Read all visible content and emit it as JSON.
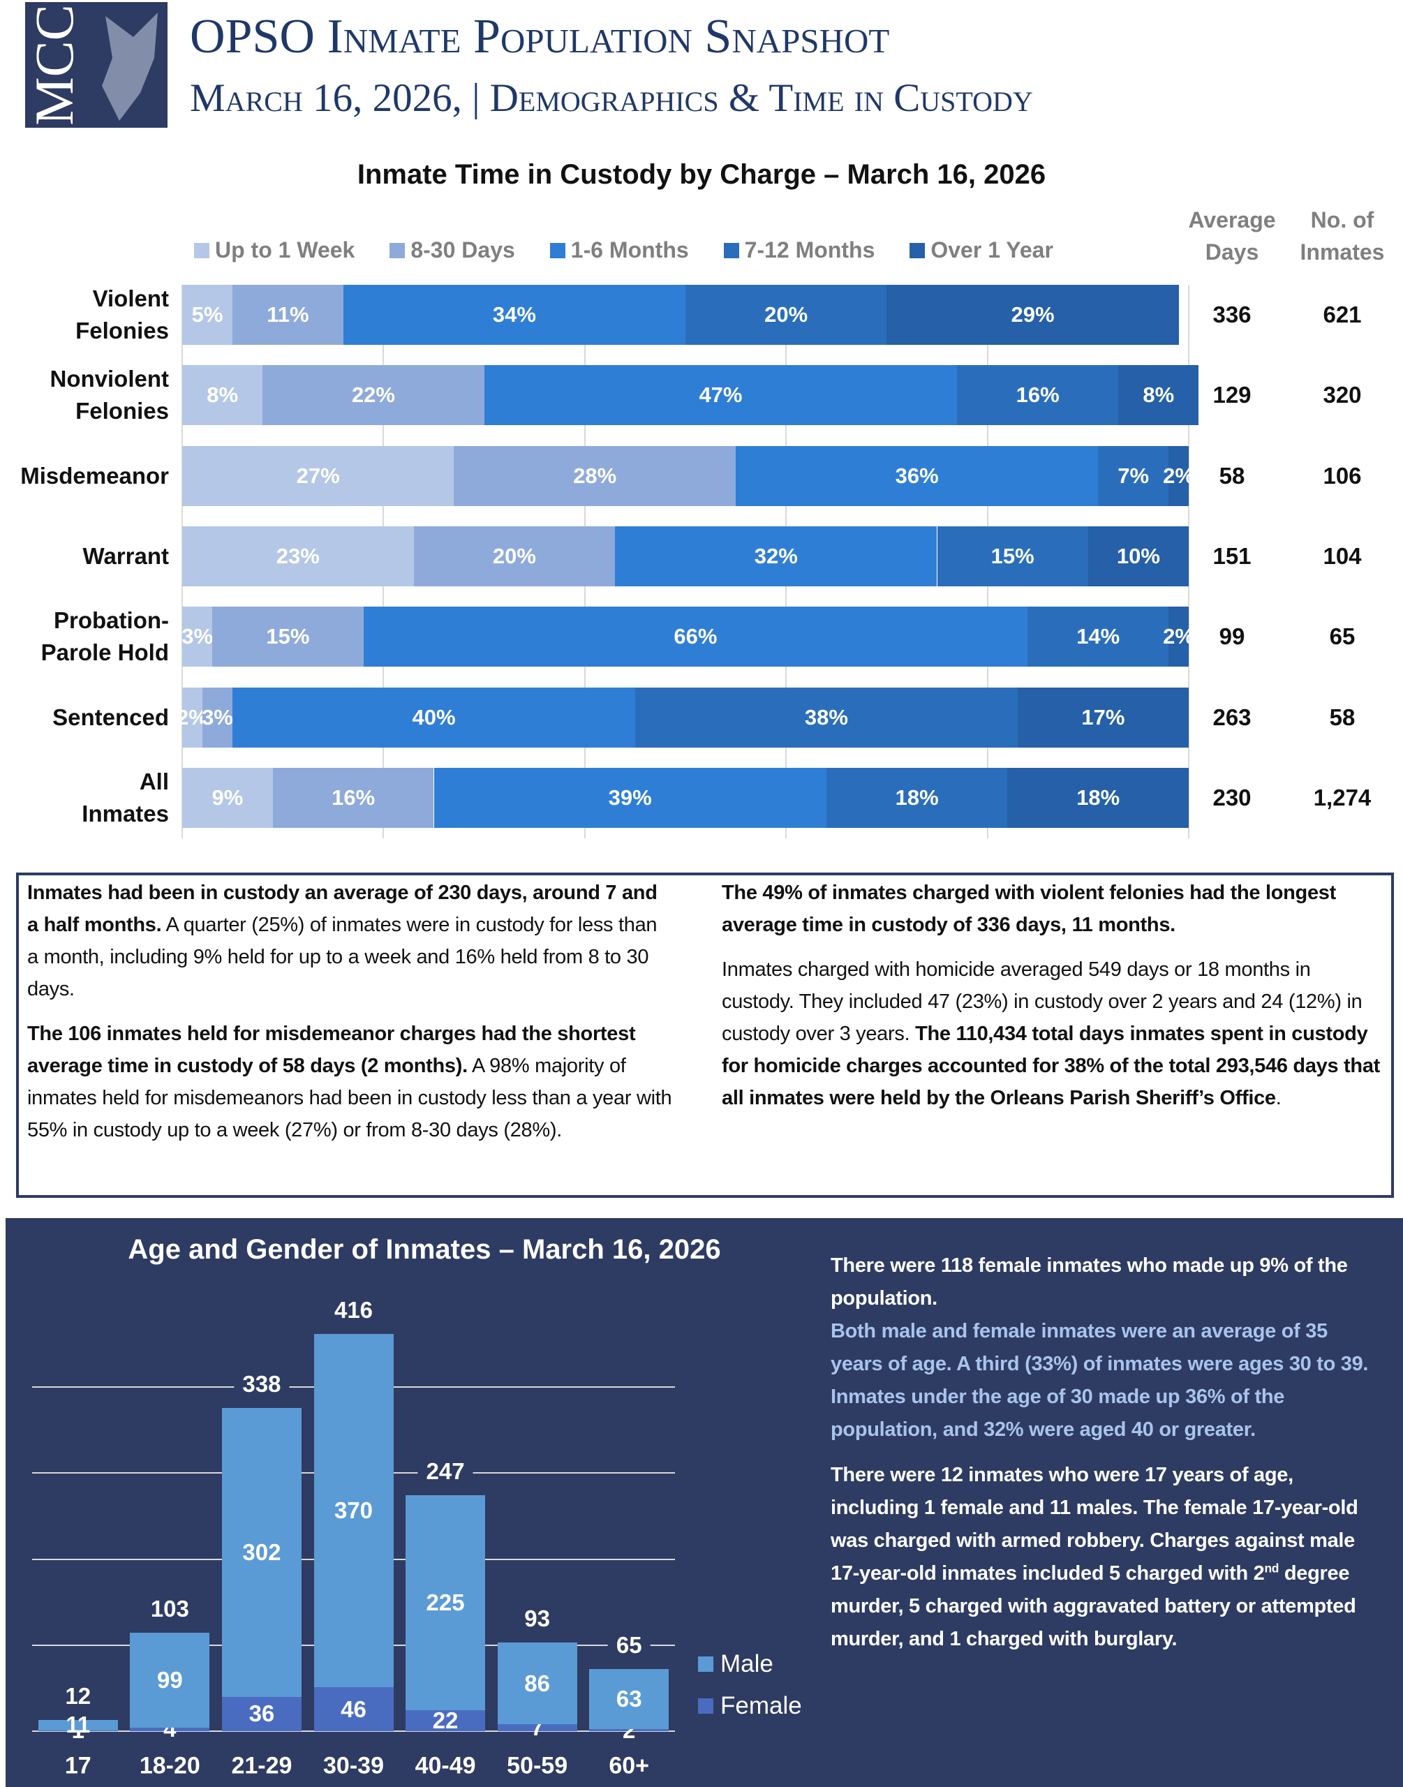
{
  "header": {
    "logo": "MCC",
    "title": "OPSO Inmate Population Snapshot",
    "subtitle": "March 16, 2026, | Demographics & Time in Custody"
  },
  "chart_data": [
    {
      "type": "stacked-barh",
      "title": "Inmate Time in Custody by Charge – March 16, 2026",
      "categories": [
        "Violent\nFelonies",
        "Nonviolent\nFelonies",
        "Misdemeanor",
        "Warrant",
        "Probation-\nParole Hold",
        "Sentenced",
        "All\nInmates"
      ],
      "series": [
        {
          "name": "Up to 1 Week",
          "color": "#b4c7e7",
          "values": [
            5,
            8,
            27,
            23,
            3,
            2,
            9
          ],
          "value_labels": [
            "5%",
            "8%",
            "27%",
            "23%",
            "3%",
            "2%",
            "9%"
          ]
        },
        {
          "name": "8-30 Days",
          "color": "#8eaadb",
          "values": [
            11,
            22,
            28,
            20,
            15,
            3,
            16
          ],
          "value_labels": [
            "11%",
            "22%",
            "28%",
            "20%",
            "15%",
            "3%",
            "16%"
          ]
        },
        {
          "name": "1-6 Months",
          "color": "#2f7ed6",
          "values": [
            34,
            47,
            36,
            32,
            66,
            40,
            39
          ],
          "value_labels": [
            "34%",
            "47%",
            "36%",
            "32%",
            "66%",
            "40%",
            "39%"
          ]
        },
        {
          "name": "7-12 Months",
          "color": "#2a6ebb",
          "values": [
            20,
            16,
            7,
            15,
            14,
            38,
            18
          ],
          "value_labels": [
            "20%",
            "16%",
            "7%",
            "15%",
            "14%",
            "38%",
            "18%"
          ]
        },
        {
          "name": "Over 1 Year",
          "color": "#2560a8",
          "values": [
            29,
            8,
            2,
            10,
            2,
            17,
            18
          ],
          "value_labels": [
            "29%",
            "8%",
            "2%",
            "10%",
            "2%",
            "17%",
            "18%"
          ]
        }
      ],
      "xlim": [
        0,
        100
      ],
      "xticks": [
        0,
        20,
        40,
        60,
        80,
        100
      ],
      "grid": true,
      "legend": "top",
      "columns": [
        {
          "name": "Average\nDays",
          "values": [
            336,
            129,
            58,
            151,
            99,
            263,
            230
          ]
        },
        {
          "name": "No. of\nInmates",
          "values": [
            621,
            320,
            106,
            104,
            65,
            58,
            1274
          ],
          "value_labels": [
            "621",
            "320",
            "106",
            "104",
            "65",
            "58",
            "1,274"
          ]
        }
      ]
    },
    {
      "type": "stacked-column",
      "title": "Age and Gender of Inmates – March 16, 2026",
      "categories": [
        "17",
        "18-20",
        "21-29",
        "30-39",
        "40-49",
        "50-59",
        "60+"
      ],
      "series": [
        {
          "name": "Male",
          "color": "#5b9bd5",
          "values": [
            11,
            99,
            302,
            370,
            225,
            86,
            63
          ]
        },
        {
          "name": "Female",
          "color": "#4a6cc0",
          "values": [
            1,
            4,
            36,
            46,
            22,
            7,
            2
          ]
        }
      ],
      "totals": [
        12,
        103,
        338,
        416,
        247,
        93,
        65
      ],
      "ylim": [
        0,
        450
      ],
      "yticks": [
        0,
        90,
        180,
        270,
        360
      ],
      "grid": true,
      "legend": "right"
    }
  ],
  "text_box": {
    "columns": [
      [
        {
          "runs": [
            {
              "text": "Inmates had been in custody an average of 230 days, around 7 and a half months.",
              "bold": true
            },
            {
              "text": " A quarter (25%) of inmates were in custody for less than a month, including 9% held for up to a week and 16% held from 8 to 30 days."
            }
          ]
        },
        {
          "runs": [
            {
              "text": "The 106 inmates held for misdemeanor charges had the shortest average time in custody of 58 days (2 months).",
              "bold": true
            },
            {
              "text": " A 98% majority of inmates held for misdemeanors had been in custody less than a year with 55% in custody up to a week (27%) or from 8-30 days (28%)."
            }
          ]
        }
      ],
      [
        {
          "runs": [
            {
              "text": "The 49% of inmates charged with violent felonies had the longest average time in custody of 336 days, 11 months.",
              "bold": true
            }
          ]
        },
        {
          "runs": [
            {
              "text": "Inmates charged with homicide averaged 549 days or 18 months in custody. They included 47 (23%) in custody over 2 years and 24 (12%) in custody over 3 years. "
            },
            {
              "text": "The 110,434 total days inmates spent in custody for homicide charges accounted for 38% of the total 293,546 days that all inmates were held by the Orleans Parish Sheriff’s Office",
              "bold": true
            },
            {
              "text": "."
            }
          ]
        }
      ]
    ]
  },
  "age_notes": [
    {
      "color": "#ffffff",
      "runs": [
        {
          "text": "There were 118 female inmates who made up 9% of the population."
        }
      ]
    },
    {
      "color": "#a9c4ec",
      "runs": [
        {
          "text": "Both male and female inmates were an average of 35 years of age. A third (33%) of inmates were ages 30 to 39. Inmates under the age of 30 made up 36% of the population, and 32% were aged 40 or greater."
        }
      ]
    },
    {
      "color": "#ffffff",
      "runs": [
        {
          "text": "There were 12 inmates who were 17 years of age, including 1 female and 11 males.  The female 17-year-old was charged with armed robbery. Charges against male 17-year-old inmates included 5 charged with 2"
        },
        {
          "text": "nd",
          "sup": true
        },
        {
          "text": " degree murder, 5 charged with aggravated battery or attempted murder, and 1 charged with burglary."
        }
      ]
    }
  ]
}
